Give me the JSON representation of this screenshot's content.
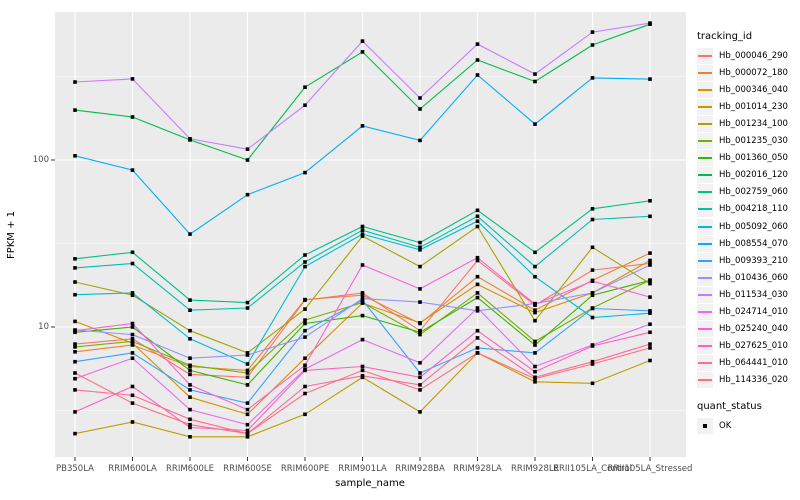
{
  "chart_data": {
    "type": "line",
    "title": "",
    "xlabel": "sample_name",
    "ylabel": "FPKM + 1",
    "y_scale": "log10",
    "y_ticks": [
      "100",
      "10"
    ],
    "y_tick_values": [
      100,
      10
    ],
    "y_minor_values": [
      316.2,
      31.62,
      3.162
    ],
    "ylim": [
      1.75,
      800
    ],
    "grid": "on",
    "legend_position": "right",
    "panel_color": "#EBEBEB",
    "grid_color": "#FFFFFF",
    "marker": "black-square",
    "categories": [
      "PB350LA",
      "RRIM600LA",
      "RRIM600LE",
      "RRIM600SE",
      "RRIM600PE",
      "RRIM901LA",
      "RRIM928BA",
      "RRIM928LA",
      "RRIM928LE",
      "RRII105LA_Control",
      "RRII105LA_Stressed"
    ],
    "legend": {
      "title": "tracking_id"
    },
    "quant_legend": {
      "title": "quant_status",
      "items": [
        {
          "label": "OK",
          "marker": "square",
          "color": "#000000"
        }
      ]
    },
    "series": [
      {
        "name": "Hb_000046_290",
        "color": "#F8766D",
        "values": [
          7.9,
          8.5,
          5.2,
          5.0,
          14.5,
          16,
          9.5,
          25,
          13.5,
          21.9,
          24
        ]
      },
      {
        "name": "Hb_000072_180",
        "color": "#EA8331",
        "values": [
          7.1,
          7.8,
          5.8,
          5.5,
          14.6,
          15.5,
          10.5,
          20,
          12.6,
          19,
          27.7
        ]
      },
      {
        "name": "Hb_000346_040",
        "color": "#D89000",
        "values": [
          10.8,
          8.0,
          3.8,
          3.0,
          6.5,
          13.9,
          10.6,
          18,
          12.2,
          16,
          25
        ]
      },
      {
        "name": "Hb_001014_230",
        "color": "#C09B00",
        "values": [
          2.3,
          2.7,
          2.2,
          2.2,
          3.0,
          5.0,
          3.1,
          7.0,
          4.7,
          4.6,
          6.3
        ]
      },
      {
        "name": "Hb_001234_100",
        "color": "#A3A500",
        "values": [
          18.6,
          15.5,
          9.5,
          7.0,
          12.8,
          35,
          23,
          40,
          10.9,
          30,
          18.2
        ]
      },
      {
        "name": "Hb_001235_030",
        "color": "#7CAE00",
        "values": [
          7.6,
          8.2,
          5.9,
          5.3,
          11.0,
          14,
          9.0,
          16,
          8.2,
          13,
          19.1
        ]
      },
      {
        "name": "Hb_001360_050",
        "color": "#39B600",
        "values": [
          9.3,
          10,
          5.5,
          4.5,
          10.5,
          11.7,
          9.3,
          15,
          7.8,
          15.5,
          19
        ]
      },
      {
        "name": "Hb_002016_120",
        "color": "#00BB4E",
        "values": [
          199,
          181,
          132,
          100,
          273,
          444,
          202,
          397,
          295,
          488,
          650
        ]
      },
      {
        "name": "Hb_002759_060",
        "color": "#00C087",
        "values": [
          25.6,
          28,
          14.5,
          14,
          27,
          40,
          32,
          50,
          28,
          51,
          57
        ]
      },
      {
        "name": "Hb_004218_110",
        "color": "#00C0AF",
        "values": [
          22.6,
          24,
          12.6,
          13,
          24.5,
          38,
          30,
          46,
          23,
          44,
          46
        ]
      },
      {
        "name": "Hb_005092_060",
        "color": "#00BCD8",
        "values": [
          15.6,
          16,
          8.5,
          6.0,
          23,
          36,
          29,
          43,
          20,
          11.4,
          12.1
        ]
      },
      {
        "name": "Hb_008554_070",
        "color": "#00B0F6",
        "values": [
          106,
          87,
          36,
          62,
          84,
          160,
          131,
          323,
          164,
          310,
          305
        ]
      },
      {
        "name": "Hb_009393_210",
        "color": "#35A2FF",
        "values": [
          6.2,
          7.0,
          4.2,
          3.5,
          9.5,
          14.5,
          5.3,
          7.5,
          7.0,
          12.9,
          12.5
        ]
      },
      {
        "name": "Hb_010436_060",
        "color": "#9590FF",
        "values": [
          9.6,
          9.0,
          6.5,
          6.8,
          8.7,
          14.8,
          14.1,
          12.5,
          13.8,
          16,
          23.5
        ]
      },
      {
        "name": "Hb_011534_030",
        "color": "#C77CFF",
        "values": [
          293,
          306,
          134,
          116,
          213,
          515,
          235,
          494,
          327,
          583,
          660
        ]
      },
      {
        "name": "Hb_024714_010",
        "color": "#E76BF3",
        "values": [
          4.9,
          6.5,
          3.2,
          2.6,
          5.6,
          8.4,
          6.1,
          13,
          5.8,
          7.8,
          10.4
        ]
      },
      {
        "name": "Hb_025240_040",
        "color": "#FA62DB",
        "values": [
          9.5,
          10.5,
          4.5,
          3.2,
          5.9,
          23.5,
          16.9,
          26,
          13.7,
          18.8,
          15.1
        ]
      },
      {
        "name": "Hb_027625_010",
        "color": "#FF62BC",
        "values": [
          3.1,
          4.4,
          2.5,
          2.4,
          5.5,
          5.8,
          5.0,
          9.5,
          5.4,
          7.7,
          9.3
        ]
      },
      {
        "name": "Hb_064441_010",
        "color": "#FF6A98",
        "values": [
          4.2,
          3.9,
          2.8,
          2.3,
          4.4,
          5.1,
          4.5,
          8.6,
          5.0,
          6.2,
          7.9
        ]
      },
      {
        "name": "Hb_114336_020",
        "color": "#FC7183",
        "values": [
          5.3,
          3.5,
          2.6,
          2.3,
          4.0,
          5.5,
          4.2,
          7.0,
          4.9,
          6.0,
          7.5
        ]
      }
    ]
  }
}
